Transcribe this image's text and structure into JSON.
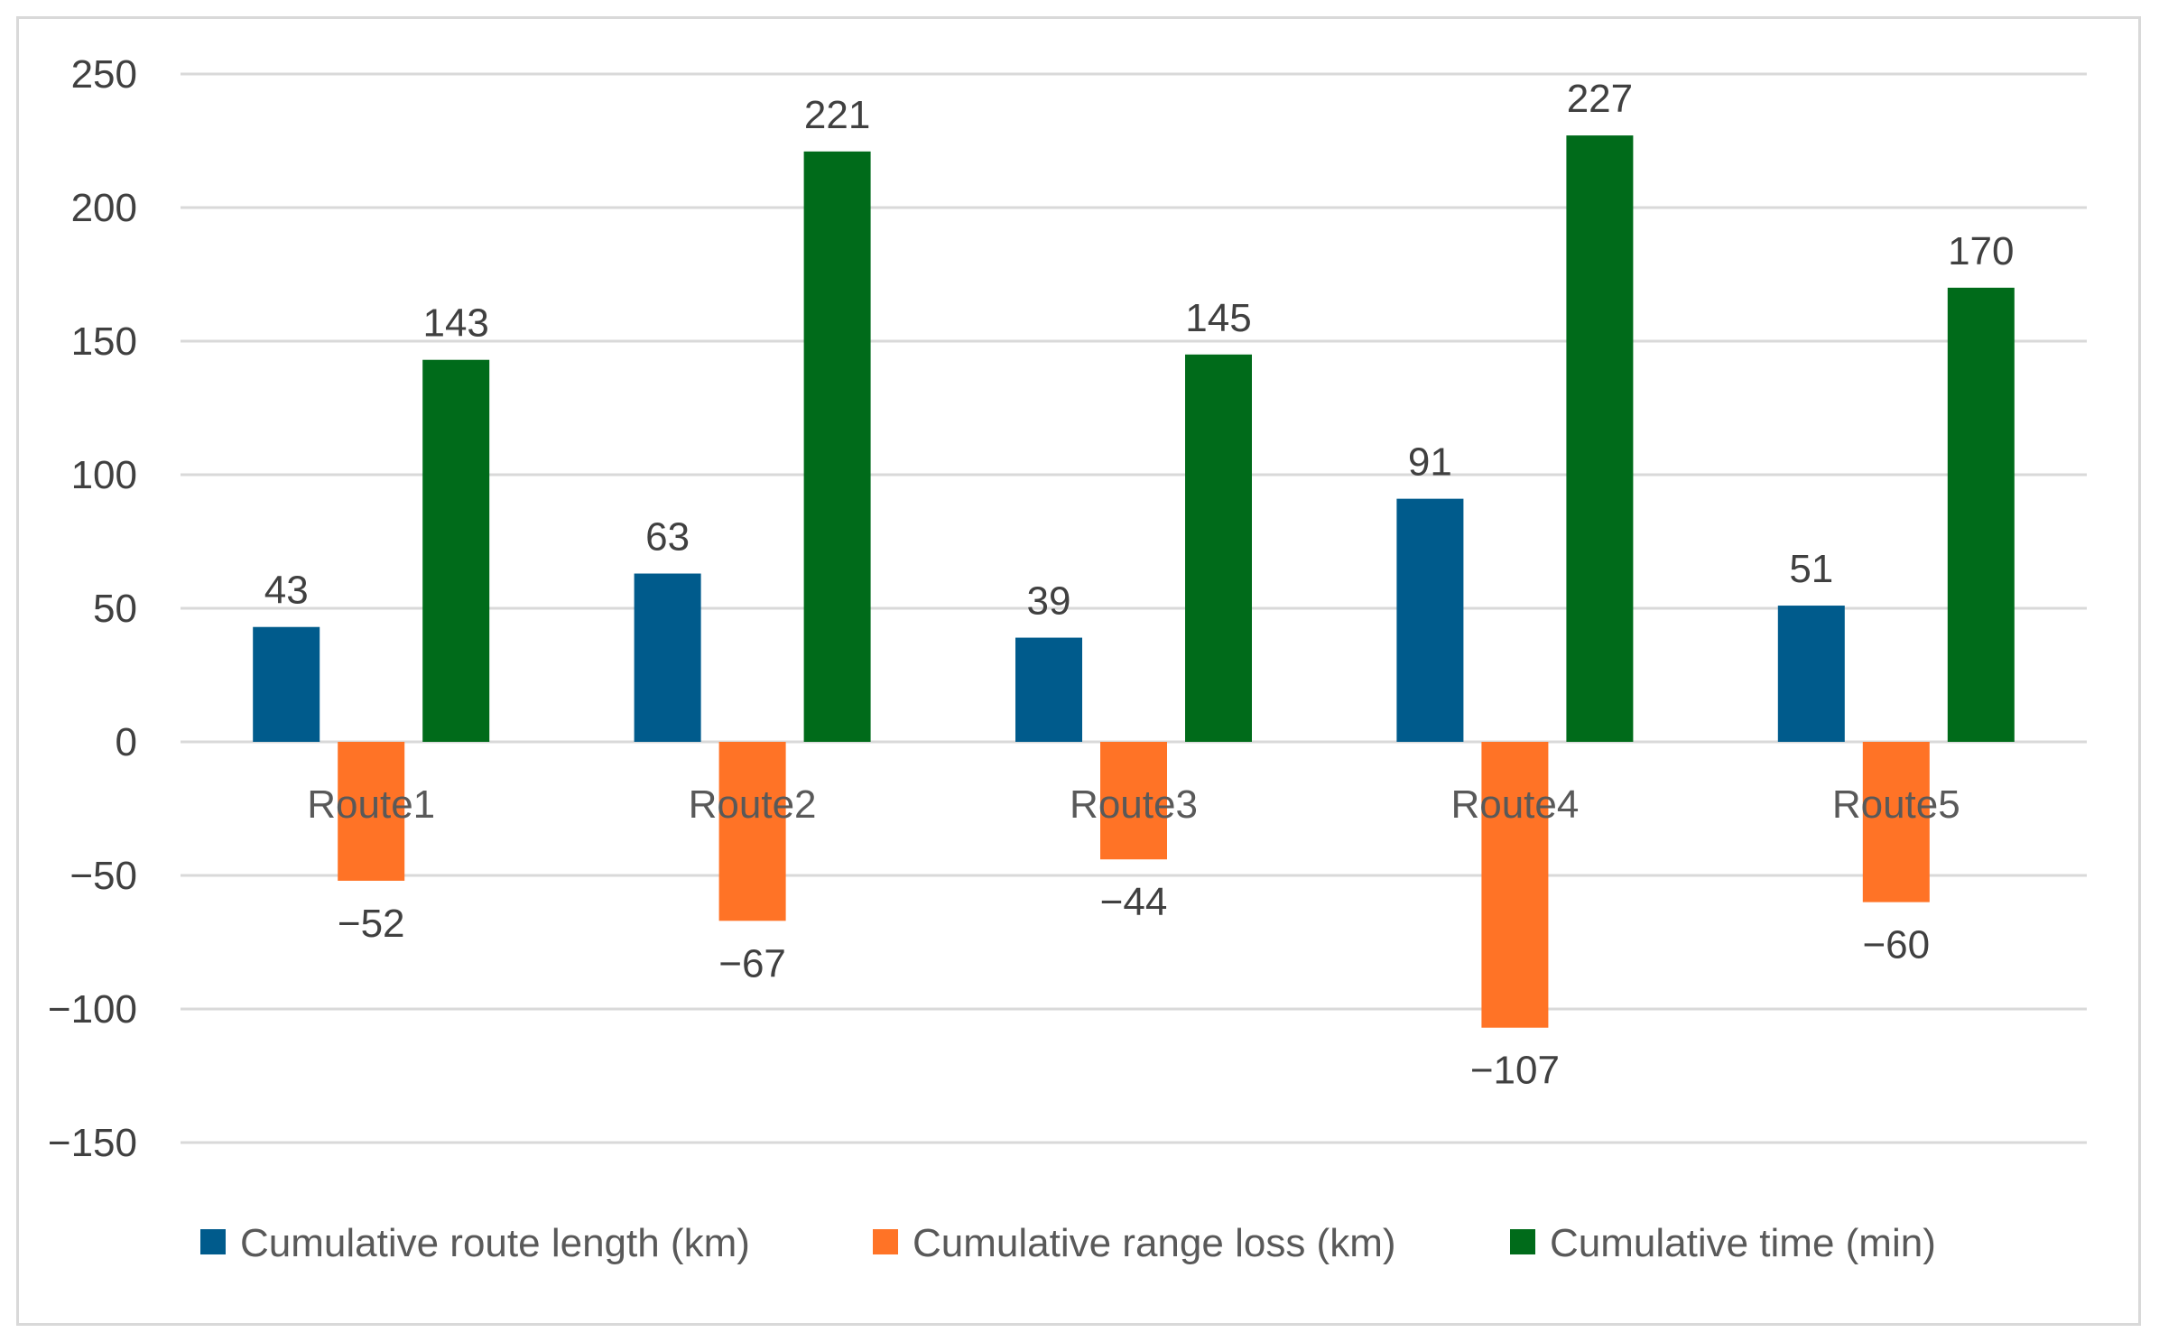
{
  "chart_data": {
    "type": "bar",
    "title": "",
    "xlabel": "",
    "ylabel": "",
    "ylim": [
      -150,
      250
    ],
    "yticks": [
      250,
      200,
      150,
      100,
      50,
      0,
      -50,
      -100,
      -150
    ],
    "ytick_labels": [
      "250",
      "200",
      "150",
      "100",
      "50",
      "0",
      "−50",
      "−100",
      "−150"
    ],
    "grid": true,
    "legend_position": "bottom",
    "categories": [
      "Route1",
      "Route2",
      "Route3",
      "Route4",
      "Route5"
    ],
    "series": [
      {
        "name": "Cumulative route length (km)",
        "color": "#005b8c",
        "values": [
          43,
          63,
          39,
          91,
          51
        ],
        "labels": [
          "43",
          "63",
          "39",
          "91",
          "51"
        ]
      },
      {
        "name": "Cumulative range loss (km)",
        "color": "#ff7326",
        "values": [
          -52,
          -67,
          -44,
          -107,
          -60
        ],
        "labels": [
          "−52",
          "−67",
          "−44",
          "−107",
          "−60"
        ]
      },
      {
        "name": "Cumulative time (min)",
        "color": "#006b1a",
        "values": [
          143,
          221,
          145,
          227,
          170
        ],
        "labels": [
          "143",
          "221",
          "145",
          "227",
          "170"
        ]
      }
    ]
  }
}
